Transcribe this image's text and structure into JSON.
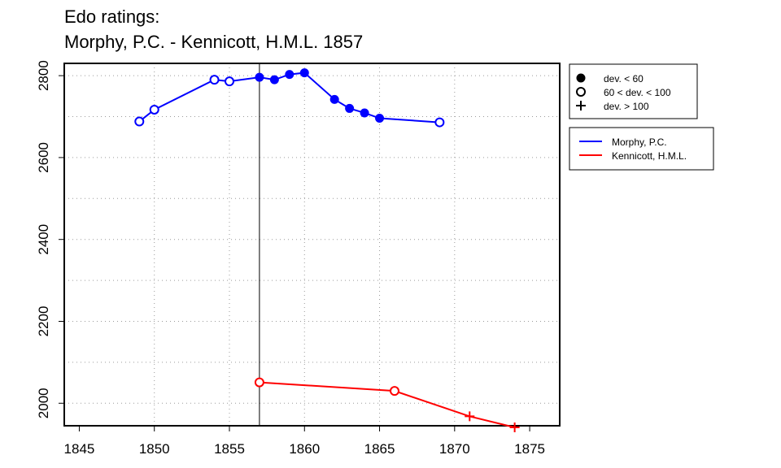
{
  "chart_data": {
    "type": "line",
    "title_line1": "Edo ratings:",
    "title_line2": "Morphy, P.C. - Kennicott, H.M.L. 1857",
    "xlabel": "",
    "ylabel": "",
    "xlim": [
      1844,
      1877
    ],
    "ylim": [
      1945,
      2830
    ],
    "x_ticks": [
      1845,
      1850,
      1855,
      1860,
      1865,
      1870,
      1875
    ],
    "y_ticks": [
      2000,
      2200,
      2400,
      2600,
      2800
    ],
    "x_grid": [
      1850,
      1855,
      1860,
      1865,
      1870
    ],
    "y_grid": [
      1900,
      2000,
      2100,
      2200,
      2300,
      2400,
      2500,
      2600,
      2700,
      2800
    ],
    "grid": true,
    "reference_year": 1857,
    "series": [
      {
        "name": "Morphy, P.C.",
        "color": "#0000ff",
        "points": [
          {
            "x": 1849,
            "y": 2688,
            "marker": "open"
          },
          {
            "x": 1850,
            "y": 2717,
            "marker": "open"
          },
          {
            "x": 1854,
            "y": 2790,
            "marker": "open"
          },
          {
            "x": 1855,
            "y": 2786,
            "marker": "open"
          },
          {
            "x": 1857,
            "y": 2796,
            "marker": "filled"
          },
          {
            "x": 1858,
            "y": 2790,
            "marker": "filled"
          },
          {
            "x": 1859,
            "y": 2803,
            "marker": "filled"
          },
          {
            "x": 1860,
            "y": 2807,
            "marker": "filled"
          },
          {
            "x": 1862,
            "y": 2742,
            "marker": "filled"
          },
          {
            "x": 1863,
            "y": 2720,
            "marker": "filled"
          },
          {
            "x": 1864,
            "y": 2709,
            "marker": "filled"
          },
          {
            "x": 1865,
            "y": 2696,
            "marker": "filled"
          },
          {
            "x": 1869,
            "y": 2686,
            "marker": "open"
          }
        ]
      },
      {
        "name": "Kennicott, H.M.L.",
        "color": "#ff0000",
        "points": [
          {
            "x": 1857,
            "y": 2051,
            "marker": "open"
          },
          {
            "x": 1866,
            "y": 2030,
            "marker": "open"
          },
          {
            "x": 1871,
            "y": 1968,
            "marker": "plus"
          },
          {
            "x": 1874,
            "y": 1941,
            "marker": "plus"
          }
        ]
      }
    ],
    "marker_legend": [
      {
        "marker": "filled",
        "label": "dev. < 60"
      },
      {
        "marker": "open",
        "label": "60 < dev. < 100"
      },
      {
        "marker": "plus",
        "label": "dev. > 100"
      }
    ],
    "legend_placement": "right, outside plot"
  }
}
